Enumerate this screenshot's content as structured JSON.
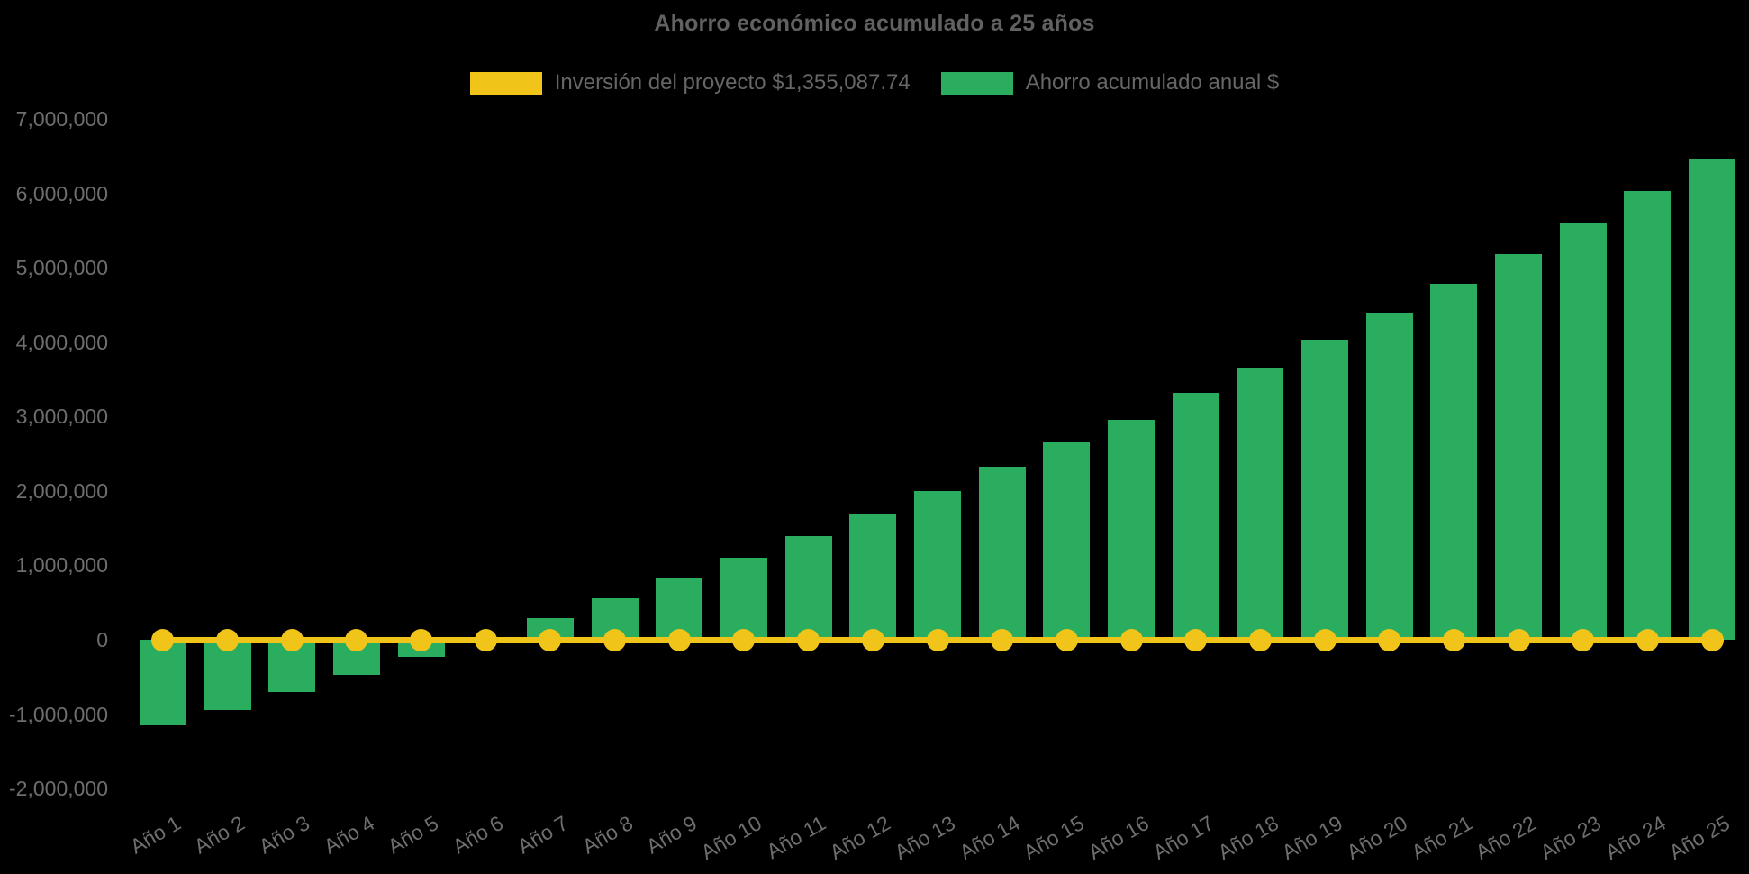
{
  "title": "Ahorro económico acumulado a 25 años",
  "legend": {
    "items": [
      {
        "label": "Inversión del proyecto $1,355,087.74",
        "color": "#F0C419"
      },
      {
        "label": "Ahorro acumulado anual $",
        "color": "#2AAD5F"
      }
    ]
  },
  "colors": {
    "background": "#000000",
    "investment_line": "#F0C419",
    "savings_bar": "#2AAD5F",
    "text": "#666666",
    "axis_text": "#6E6E6E"
  },
  "chart_data": {
    "type": "bar",
    "title": "Ahorro económico acumulado a 25 años",
    "categories": [
      "Año 1",
      "Año 2",
      "Año 3",
      "Año 4",
      "Año 5",
      "Año 6",
      "Año 7",
      "Año 8",
      "Año 9",
      "Año 10",
      "Año 11",
      "Año 12",
      "Año 13",
      "Año 14",
      "Año 15",
      "Año 16",
      "Año 17",
      "Año 18",
      "Año 19",
      "Año 20",
      "Año 21",
      "Año 22",
      "Año 23",
      "Año 24",
      "Año 25"
    ],
    "series": [
      {
        "name": "Inversión del proyecto $1,355,087.74",
        "type": "line",
        "color": "#F0C419",
        "marker": "circle",
        "values": [
          0,
          0,
          0,
          0,
          0,
          0,
          0,
          0,
          0,
          0,
          0,
          0,
          0,
          0,
          0,
          0,
          0,
          0,
          0,
          0,
          0,
          0,
          0,
          0,
          0
        ]
      },
      {
        "name": "Ahorro acumulado anual $",
        "type": "bar",
        "color": "#2AAD5F",
        "values": [
          -1150000,
          -940000,
          -700000,
          -470000,
          -230000,
          30000,
          290000,
          560000,
          830000,
          1100000,
          1390000,
          1690000,
          2000000,
          2330000,
          2650000,
          2960000,
          3320000,
          3660000,
          4030000,
          4400000,
          4790000,
          5190000,
          5600000,
          6030000,
          6470000
        ]
      }
    ],
    "xlabel": "",
    "ylabel": "",
    "ylim": [
      -2000000,
      7000000
    ],
    "ytick_step": 1000000,
    "yticks": [
      {
        "value": 7000000,
        "label": "7,000,000"
      },
      {
        "value": 6000000,
        "label": "6,000,000"
      },
      {
        "value": 5000000,
        "label": "5,000,000"
      },
      {
        "value": 4000000,
        "label": "4,000,000"
      },
      {
        "value": 3000000,
        "label": "3,000,000"
      },
      {
        "value": 2000000,
        "label": "2,000,000"
      },
      {
        "value": 1000000,
        "label": "1,000,000"
      },
      {
        "value": 0,
        "label": "0"
      },
      {
        "value": -1000000,
        "label": "-1,000,000"
      },
      {
        "value": -2000000,
        "label": "-2,000,000"
      }
    ],
    "grid": false,
    "legend_position": "top"
  }
}
